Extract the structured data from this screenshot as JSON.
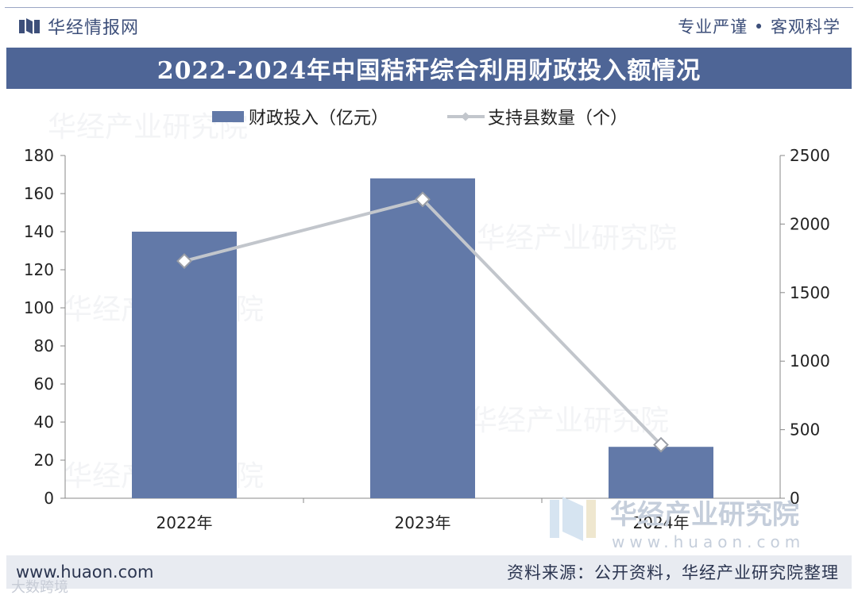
{
  "header": {
    "brand_name": "华经情报网",
    "slogan": "专业严谨 • 客观科学"
  },
  "title": "2022-2024年中国秸秆综合利用财政投入额情况",
  "legend": {
    "bar_label": "财政投入（亿元）",
    "line_label": "支持县数量（个）"
  },
  "footer": {
    "site": "www.huaon.com",
    "source": "资料来源：公开资料，华经产业研究院整理"
  },
  "watermark": {
    "main": "华经产业研究院",
    "url": "www.huaon.com",
    "ghost": "华经产业研究院",
    "corner": "大数跨境"
  },
  "colors": {
    "bar": "#6279a8",
    "line": "#c2c6cc",
    "title_bg": "#4e6596",
    "axis": "#888888",
    "text": "#222222"
  },
  "chart_data": {
    "type": "bar",
    "categories": [
      "2022年",
      "2023年",
      "2024年"
    ],
    "series": [
      {
        "name": "财政投入（亿元）",
        "type": "bar",
        "axis": "left",
        "values": [
          140,
          168,
          27
        ]
      },
      {
        "name": "支持县数量（个）",
        "type": "line",
        "axis": "right",
        "values": [
          1730,
          2180,
          390
        ]
      }
    ],
    "y_left": {
      "min": 0,
      "max": 180,
      "step": 20,
      "ticks": [
        "0",
        "20",
        "40",
        "60",
        "80",
        "100",
        "120",
        "140",
        "160",
        "180"
      ]
    },
    "y_right": {
      "min": 0,
      "max": 2500,
      "step": 500,
      "ticks": [
        "0",
        "500",
        "1000",
        "1500",
        "2000",
        "2500"
      ]
    },
    "legend_position": "top-center",
    "grid": false
  }
}
